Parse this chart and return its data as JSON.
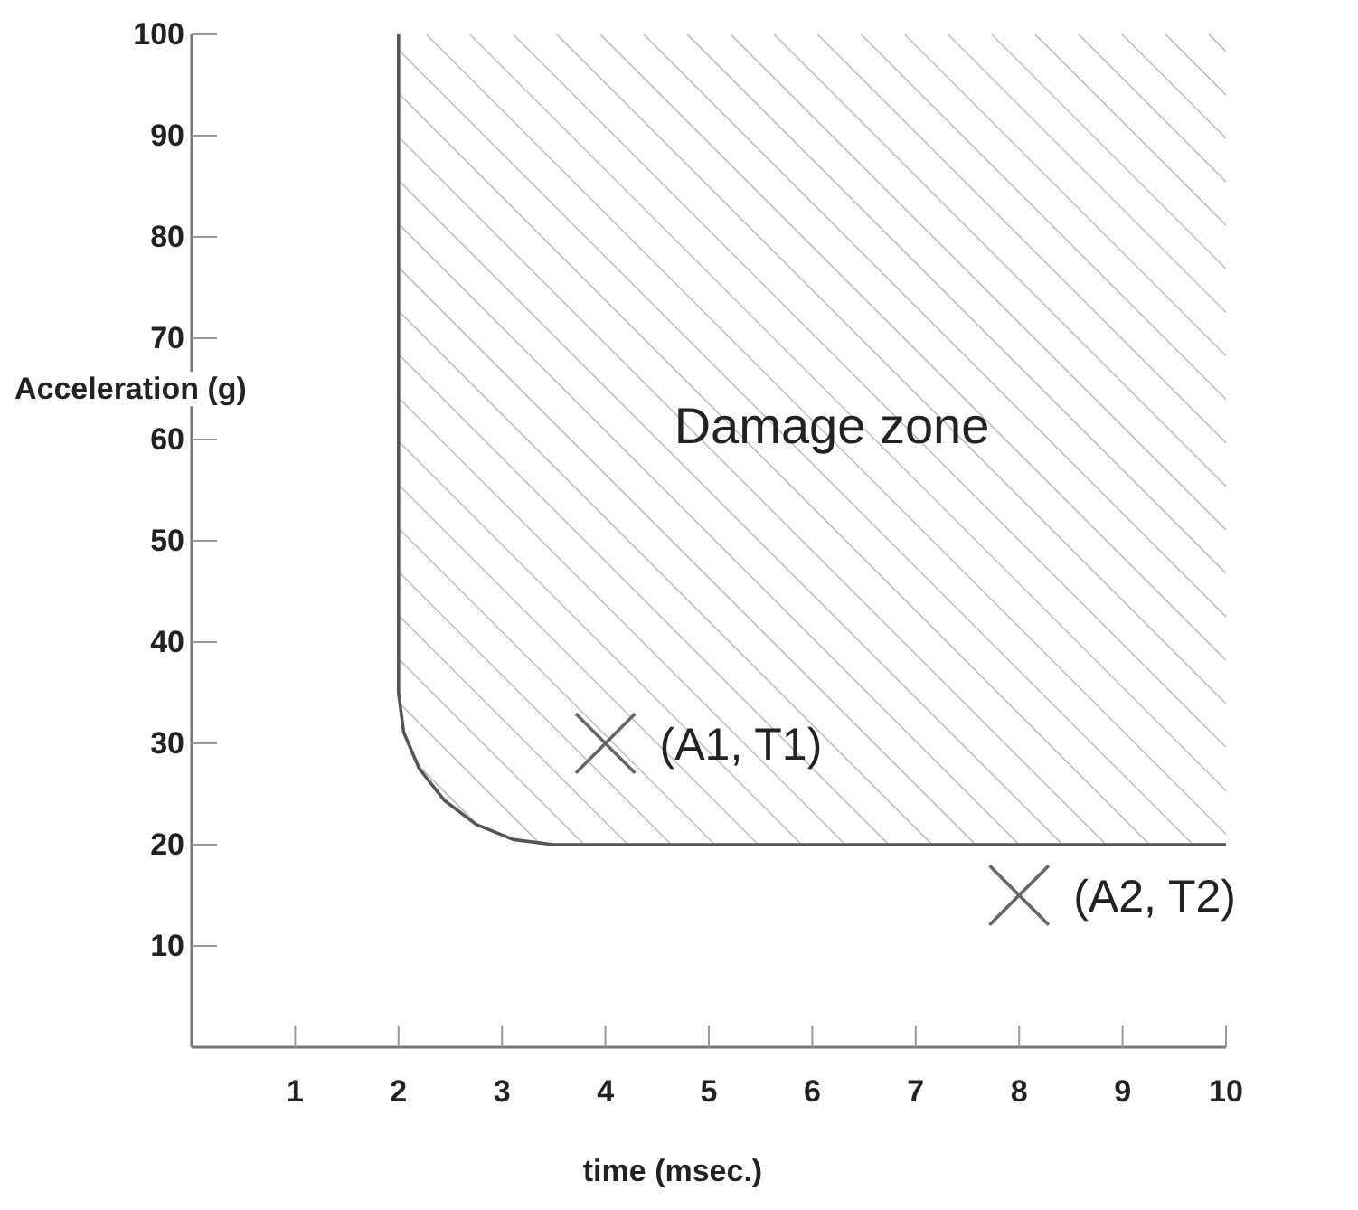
{
  "chart_data": {
    "type": "line",
    "xlabel": "time (msec.)",
    "ylabel": "Acceleration (g)",
    "xlim": [
      0,
      10
    ],
    "ylim": [
      0,
      100
    ],
    "xticks": [
      1,
      2,
      3,
      4,
      5,
      6,
      7,
      8,
      9,
      10
    ],
    "yticks": [
      10,
      20,
      30,
      40,
      50,
      60,
      70,
      80,
      90,
      100
    ],
    "grid": false,
    "series": [
      {
        "color": "#555555",
        "x": [
          2,
          2,
          2.05,
          2.2,
          2.44,
          2.75,
          3.11,
          3.5,
          10
        ],
        "values": [
          100,
          35,
          31.1,
          27.5,
          24.4,
          22,
          20.5,
          20,
          20
        ],
        "lower": [
          null,
          35,
          31.1,
          27.5,
          24.4,
          22,
          20.5,
          20,
          20
        ],
        "upper": [
          null,
          100,
          100,
          100,
          100,
          100,
          100,
          100,
          100
        ]
      },
      {
        "type": "scatter",
        "color": "#666666",
        "marker": "cross",
        "x": [
          4,
          8
        ],
        "values": [
          30,
          15
        ]
      }
    ],
    "annotations": [
      "Damage zone",
      {
        "text": "(A1, T1)",
        "x": 4,
        "y": 30
      },
      {
        "text": "(A2, T2)",
        "x": 8,
        "y": 15
      }
    ]
  }
}
